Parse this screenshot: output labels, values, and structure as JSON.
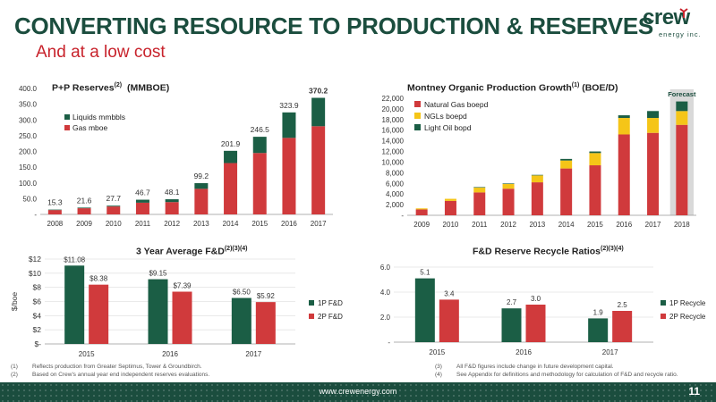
{
  "page": {
    "title": "CONVERTING RESOURCE TO PRODUCTION & RESERVES",
    "subtitle": "And at a low cost",
    "logo_text": "crew",
    "logo_subtext": "energy inc.",
    "footer_url": "www.crewenergy.com",
    "page_number": "11"
  },
  "footnotes": {
    "left": [
      {
        "num": "(1)",
        "text": "Reflects production from Greater Septimus, Tower & Groundbirch."
      },
      {
        "num": "(2)",
        "text": "Based on Crew's annual year end independent reserves evaluations."
      }
    ],
    "right": [
      {
        "num": "(3)",
        "text": "All F&D figures include change in future development capital."
      },
      {
        "num": "(4)",
        "text": "See Appendix for definitions and methodology for calculation of F&D and recycle ratio."
      }
    ]
  },
  "titles": {
    "reserves": {
      "main": "P+P Reserves",
      "sup": "(2)",
      "tail": "  (MMBOE)"
    },
    "production": {
      "main": "Montney Organic Production Growth",
      "sup": "(1)",
      "tail": " (BOE/D)"
    },
    "fd": {
      "main": "3 Year Average F&D",
      "sup": "(2)(3)(4)",
      "tail": ""
    },
    "recycle": {
      "main": "F&D Reserve Recycle Ratios",
      "sup": "(2)(3)(4)",
      "tail": ""
    }
  },
  "colors": {
    "red": "#d03a3c",
    "green": "#1b5e45",
    "yellow": "#f5c518",
    "forecast_bg": "#d9d9d9",
    "forecast_text": "#1b4d3e"
  },
  "chart_data": [
    {
      "id": "reserves",
      "type": "bar",
      "stacked": true,
      "categories": [
        "2008",
        "2009",
        "2010",
        "2011",
        "2012",
        "2013",
        "2014",
        "2015",
        "2016",
        "2017"
      ],
      "series": [
        {
          "name": "Gas mboe",
          "color": "#d03a3c",
          "values": [
            13.8,
            19.6,
            25.2,
            37.2,
            39.1,
            81.2,
            163.0,
            195.0,
            243.0,
            280.0
          ]
        },
        {
          "name": "Liquids mmbbls",
          "color": "#1b5e45",
          "values": [
            1.5,
            2.0,
            2.5,
            9.5,
            9.0,
            18.0,
            38.9,
            51.5,
            80.9,
            90.2
          ]
        }
      ],
      "totals": [
        "15.3",
        "21.6",
        "27.7",
        "46.7",
        "48.1",
        "99.2",
        "201.9",
        "246.5",
        "323.9",
        "370.2"
      ],
      "ylim": [
        0,
        400
      ],
      "yticks": [
        0,
        50,
        100,
        150,
        200,
        250,
        300,
        350,
        400
      ],
      "ytick_labels": [
        "-",
        "50.0",
        "100.0",
        "150.0",
        "200.0",
        "250.0",
        "300.0",
        "350.0",
        "400.0"
      ],
      "legend": [
        "Liquids mmbbls",
        "Gas mboe"
      ]
    },
    {
      "id": "production",
      "type": "bar",
      "stacked": true,
      "categories": [
        "2009",
        "2010",
        "2011",
        "2012",
        "2013",
        "2014",
        "2015",
        "2016",
        "2017",
        "2018"
      ],
      "series": [
        {
          "name": "Natural Gas boepd",
          "color": "#d03a3c",
          "values": [
            1100,
            2700,
            4300,
            5000,
            6200,
            8800,
            9400,
            15200,
            15500,
            17000
          ]
        },
        {
          "name": "NGLs boepd",
          "color": "#f5c518",
          "values": [
            200,
            400,
            900,
            900,
            1300,
            1500,
            2300,
            3100,
            2800,
            2600
          ]
        },
        {
          "name": "Light Oil bopd",
          "color": "#1b5e45",
          "values": [
            0,
            0,
            100,
            100,
            100,
            300,
            300,
            500,
            1300,
            1800
          ]
        }
      ],
      "ylim": [
        0,
        22000
      ],
      "yticks": [
        0,
        2000,
        4000,
        6000,
        8000,
        10000,
        12000,
        14000,
        16000,
        18000,
        20000,
        22000
      ],
      "ytick_labels": [
        "-",
        "2,000",
        "4,000",
        "6,000",
        "8,000",
        "10,000",
        "12,000",
        "14,000",
        "16,000",
        "18,000",
        "20,000",
        "22,000"
      ],
      "legend": [
        "Natural Gas boepd",
        "NGLs boepd",
        "Light Oil bopd"
      ],
      "annotation": "Forecast"
    },
    {
      "id": "fd",
      "type": "bar",
      "stacked": false,
      "categories": [
        "2015",
        "2016",
        "2017"
      ],
      "series": [
        {
          "name": "1P F&D",
          "color": "#1b5e45",
          "values": [
            11.08,
            9.15,
            6.5
          ],
          "labels": [
            "$11.08",
            "$9.15",
            "$6.50"
          ]
        },
        {
          "name": "2P F&D",
          "color": "#d03a3c",
          "values": [
            8.38,
            7.39,
            5.92
          ],
          "labels": [
            "$8.38",
            "$7.39",
            "$5.92"
          ]
        }
      ],
      "ylim": [
        0,
        12
      ],
      "yticks": [
        0,
        2,
        4,
        6,
        8,
        10,
        12
      ],
      "ytick_labels": [
        "$-",
        "$2",
        "$4",
        "$6",
        "$8",
        "$10",
        "$12"
      ],
      "ylabel": "$/boe",
      "legend": [
        "1P F&D",
        "2P F&D"
      ]
    },
    {
      "id": "recycle",
      "type": "bar",
      "stacked": false,
      "categories": [
        "2015",
        "2016",
        "2017"
      ],
      "series": [
        {
          "name": "1P Recycle",
          "color": "#1b5e45",
          "values": [
            5.1,
            2.7,
            1.9
          ],
          "labels": [
            "5.1",
            "2.7",
            "1.9"
          ]
        },
        {
          "name": "2P Recycle",
          "color": "#d03a3c",
          "values": [
            3.4,
            3.0,
            2.5
          ],
          "labels": [
            "3.4",
            "3.0",
            "2.5"
          ]
        }
      ],
      "ylim": [
        0,
        6
      ],
      "yticks": [
        0,
        2,
        4,
        6
      ],
      "ytick_labels": [
        "-",
        "2.0",
        "4.0",
        "6.0"
      ],
      "legend": [
        "1P Recycle",
        "2P Recycle"
      ]
    }
  ]
}
